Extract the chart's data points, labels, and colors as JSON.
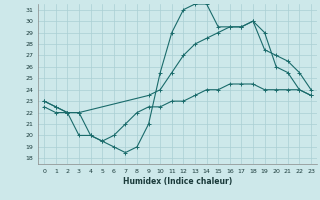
{
  "xlabel": "Humidex (Indice chaleur)",
  "xlim": [
    -0.5,
    23.5
  ],
  "ylim": [
    17.5,
    31.5
  ],
  "yticks": [
    18,
    19,
    20,
    21,
    22,
    23,
    24,
    25,
    26,
    27,
    28,
    29,
    30,
    31
  ],
  "xticks": [
    0,
    1,
    2,
    3,
    4,
    5,
    6,
    7,
    8,
    9,
    10,
    11,
    12,
    13,
    14,
    15,
    16,
    17,
    18,
    19,
    20,
    21,
    22,
    23
  ],
  "bg_color": "#cde8ea",
  "line_color": "#1a6b6b",
  "grid_color": "#aacfd4",
  "line1_x": [
    0,
    1,
    2,
    3,
    4,
    5,
    6,
    7,
    8,
    9,
    10,
    11,
    12,
    13,
    14,
    15,
    16,
    17,
    18,
    19,
    20,
    21,
    22,
    23
  ],
  "line1_y": [
    23.0,
    22.5,
    22.0,
    22.0,
    20.0,
    19.5,
    19.0,
    18.5,
    19.0,
    21.0,
    25.5,
    29.0,
    31.0,
    31.5,
    31.5,
    29.5,
    29.5,
    29.5,
    30.0,
    29.0,
    26.0,
    25.5,
    24.0,
    23.5
  ],
  "line2_x": [
    0,
    1,
    2,
    3,
    9,
    10,
    11,
    12,
    13,
    14,
    15,
    16,
    17,
    18,
    19,
    20,
    21,
    22,
    23
  ],
  "line2_y": [
    23.0,
    22.5,
    22.0,
    22.0,
    23.5,
    24.0,
    25.5,
    27.0,
    28.0,
    28.5,
    29.0,
    29.5,
    29.5,
    30.0,
    27.5,
    27.0,
    26.5,
    25.5,
    24.0
  ],
  "line3_x": [
    0,
    1,
    2,
    3,
    4,
    5,
    6,
    7,
    8,
    9,
    10,
    11,
    12,
    13,
    14,
    15,
    16,
    17,
    18,
    19,
    20,
    21,
    22,
    23
  ],
  "line3_y": [
    22.5,
    22.0,
    22.0,
    20.0,
    20.0,
    19.5,
    20.0,
    21.0,
    22.0,
    22.5,
    22.5,
    23.0,
    23.0,
    23.5,
    24.0,
    24.0,
    24.5,
    24.5,
    24.5,
    24.0,
    24.0,
    24.0,
    24.0,
    23.5
  ]
}
